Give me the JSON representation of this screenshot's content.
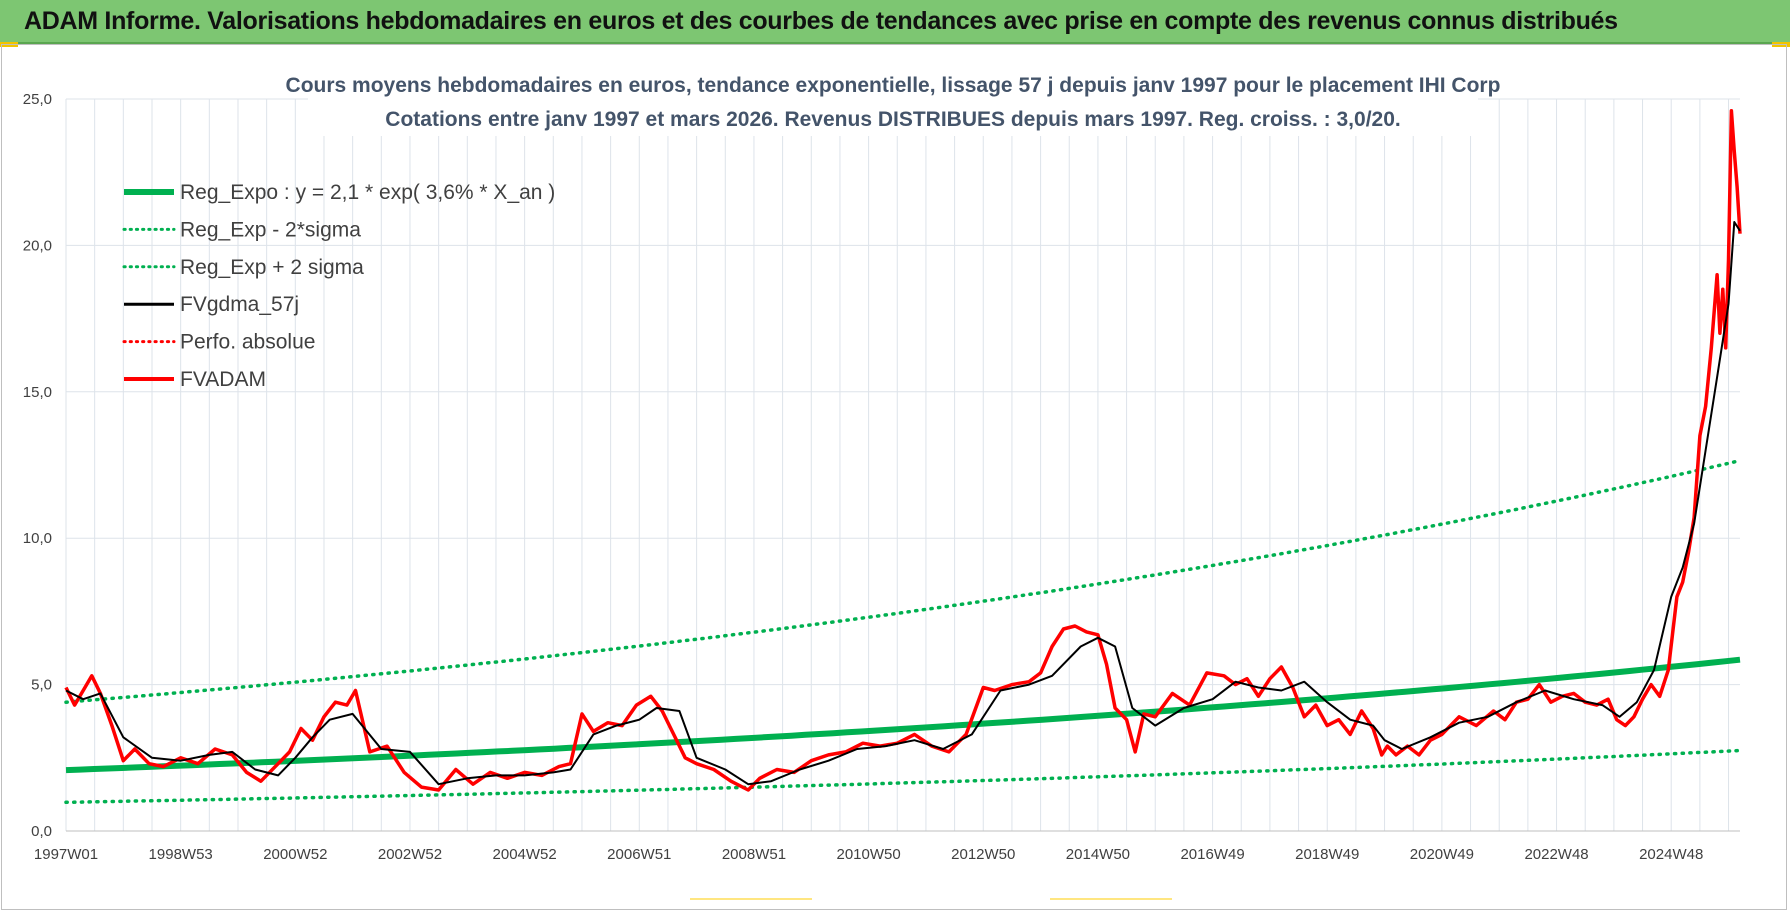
{
  "header": {
    "title": "ADAM Informe. Valorisations hebdomadaires en euros et des courbes de tendances avec prise en compte des revenus connus distribués"
  },
  "colors": {
    "banner": "#7dc672",
    "reg": "#00b050",
    "fv": "#000000",
    "adam": "#ff0000",
    "perfo": "#ff0000"
  },
  "chart_data": {
    "type": "line",
    "title": "Cours moyens hebdomadaires en euros, tendance exponentielle, lissage 57 j depuis janv 1997 pour le placement IHI Corp",
    "subtitle": "Cotations entre janv 1997 et mars 2026. Revenus DISTRIBUES depuis mars 1997. Reg. croiss. : 3,0/20.",
    "xlim": [
      1997.0,
      2026.2
    ],
    "ylim": [
      0,
      25
    ],
    "y_ticks": [
      "0,0",
      "5,0",
      "10,0",
      "15,0",
      "20,0",
      "25,0"
    ],
    "y_tick_values": [
      0,
      5,
      10,
      15,
      20,
      25
    ],
    "x_tick_labels": [
      "1997W01",
      "1998W53",
      "2000W52",
      "2002W52",
      "2004W52",
      "2006W51",
      "2008W51",
      "2010W50",
      "2012W50",
      "2014W50",
      "2016W49",
      "2018W49",
      "2020W49",
      "2022W48",
      "2024W48"
    ],
    "x_tick_values": [
      1997.0,
      1999.0,
      2001.0,
      2003.0,
      2005.0,
      2007.0,
      2009.0,
      2011.0,
      2013.0,
      2015.0,
      2017.0,
      2019.0,
      2021.0,
      2023.0,
      2025.0
    ],
    "grid": true,
    "legend_position": "top-left",
    "legend": [
      {
        "label": "Reg_Expo : y = 2,1 * exp( 3,6% *  X_an )",
        "color": "#00b050",
        "style": "solid"
      },
      {
        "label": "Reg_Exp - 2*sigma",
        "color": "#00b050",
        "style": "dotted"
      },
      {
        "label": "Reg_Exp + 2 sigma",
        "color": "#00b050",
        "style": "dotted"
      },
      {
        "label": "FVgdma_57j",
        "color": "#000000",
        "style": "solid"
      },
      {
        "label": "Perfo. absolue",
        "color": "#ff0000",
        "style": "dotted"
      },
      {
        "label": "FVADAM",
        "color": "#ff0000",
        "style": "solid"
      }
    ],
    "series": [
      {
        "name": "Reg_Expo : y = 2,1 * exp( 3,6% *  X_an )",
        "x": [
          1997.0,
          2026.2
        ],
        "values": [
          2.08,
          5.85
        ]
      },
      {
        "name": "Reg_Exp - 2*sigma",
        "x": [
          1997.0,
          2026.2
        ],
        "values": [
          0.98,
          2.75
        ]
      },
      {
        "name": "Reg_Exp + 2 sigma",
        "x": [
          1997.0,
          2026.2
        ],
        "values": [
          4.4,
          12.65
        ]
      },
      {
        "name": "FVgdma_57j",
        "x": [
          1997.0,
          1997.3,
          1997.6,
          1998.0,
          1998.5,
          1999.0,
          1999.5,
          1999.9,
          2000.3,
          2000.7,
          2001.0,
          2001.3,
          2001.6,
          2002.0,
          2002.5,
          2003.0,
          2003.5,
          2004.0,
          2004.5,
          2005.0,
          2005.5,
          2005.8,
          2006.2,
          2006.6,
          2007.0,
          2007.3,
          2007.7,
          2008.0,
          2008.5,
          2008.9,
          2009.3,
          2009.8,
          2010.3,
          2010.8,
          2011.3,
          2011.8,
          2012.3,
          2012.8,
          2013.3,
          2013.8,
          2014.2,
          2014.7,
          2015.0,
          2015.3,
          2015.6,
          2016.0,
          2016.5,
          2017.0,
          2017.4,
          2017.8,
          2018.2,
          2018.6,
          2019.0,
          2019.4,
          2019.8,
          2020.0,
          2020.3,
          2020.8,
          2021.3,
          2021.8,
          2022.3,
          2022.8,
          2023.3,
          2023.8,
          2024.1,
          2024.4,
          2024.7,
          2025.0,
          2025.2,
          2025.4,
          2025.6,
          2025.8,
          2026.0,
          2026.1,
          2026.2
        ],
        "values": [
          4.8,
          4.5,
          4.7,
          3.2,
          2.5,
          2.4,
          2.6,
          2.7,
          2.1,
          1.9,
          2.5,
          3.2,
          3.8,
          4.0,
          2.8,
          2.7,
          1.6,
          1.8,
          1.9,
          1.9,
          2.0,
          2.1,
          3.3,
          3.6,
          3.8,
          4.2,
          4.1,
          2.5,
          2.1,
          1.6,
          1.7,
          2.1,
          2.4,
          2.8,
          2.9,
          3.1,
          2.8,
          3.3,
          4.8,
          5.0,
          5.3,
          6.3,
          6.6,
          6.3,
          4.2,
          3.6,
          4.2,
          4.5,
          5.1,
          4.9,
          4.8,
          5.1,
          4.4,
          3.8,
          3.6,
          3.1,
          2.8,
          3.2,
          3.7,
          3.9,
          4.4,
          4.8,
          4.5,
          4.3,
          3.9,
          4.4,
          5.5,
          8.0,
          9.0,
          10.5,
          13.0,
          15.5,
          18.0,
          20.8,
          20.5
        ]
      },
      {
        "name": "FVADAM",
        "x": [
          1997.0,
          1997.15,
          1997.3,
          1997.45,
          1997.6,
          1997.8,
          1998.0,
          1998.2,
          1998.45,
          1998.7,
          1999.0,
          1999.3,
          1999.6,
          1999.9,
          2000.15,
          2000.4,
          2000.7,
          2000.9,
          2001.1,
          2001.3,
          2001.5,
          2001.7,
          2001.9,
          2002.05,
          2002.3,
          2002.6,
          2002.9,
          2003.2,
          2003.5,
          2003.8,
          2004.1,
          2004.4,
          2004.7,
          2005.0,
          2005.3,
          2005.6,
          2005.8,
          2006.0,
          2006.2,
          2006.45,
          2006.7,
          2006.95,
          2007.2,
          2007.4,
          2007.6,
          2007.8,
          2008.0,
          2008.3,
          2008.6,
          2008.9,
          2009.1,
          2009.4,
          2009.7,
          2010.0,
          2010.3,
          2010.6,
          2010.9,
          2011.2,
          2011.5,
          2011.8,
          2012.1,
          2012.4,
          2012.7,
          2013.0,
          2013.2,
          2013.5,
          2013.8,
          2014.0,
          2014.2,
          2014.4,
          2014.6,
          2014.8,
          2015.0,
          2015.15,
          2015.3,
          2015.5,
          2015.65,
          2015.8,
          2016.0,
          2016.3,
          2016.6,
          2016.9,
          2017.2,
          2017.4,
          2017.6,
          2017.8,
          2018.0,
          2018.2,
          2018.4,
          2018.6,
          2018.8,
          2019.0,
          2019.2,
          2019.4,
          2019.6,
          2019.8,
          2019.95,
          2020.05,
          2020.2,
          2020.4,
          2020.6,
          2020.8,
          2021.0,
          2021.3,
          2021.6,
          2021.9,
          2022.1,
          2022.3,
          2022.5,
          2022.7,
          2022.9,
          2023.1,
          2023.3,
          2023.5,
          2023.7,
          2023.9,
          2024.05,
          2024.2,
          2024.35,
          2024.5,
          2024.65,
          2024.8,
          2024.95,
          2025.1,
          2025.2,
          2025.3,
          2025.4,
          2025.5,
          2025.6,
          2025.7,
          2025.8,
          2025.85,
          2025.9,
          2025.95,
          2026.0,
          2026.05,
          2026.1,
          2026.15,
          2026.2
        ],
        "values": [
          4.9,
          4.3,
          4.8,
          5.3,
          4.7,
          3.6,
          2.4,
          2.8,
          2.3,
          2.2,
          2.5,
          2.3,
          2.8,
          2.6,
          2.0,
          1.7,
          2.3,
          2.7,
          3.5,
          3.1,
          3.9,
          4.4,
          4.3,
          4.8,
          2.7,
          2.9,
          2.0,
          1.5,
          1.4,
          2.1,
          1.6,
          2.0,
          1.8,
          2.0,
          1.9,
          2.2,
          2.3,
          4.0,
          3.4,
          3.7,
          3.6,
          4.3,
          4.6,
          4.1,
          3.3,
          2.5,
          2.3,
          2.1,
          1.7,
          1.4,
          1.8,
          2.1,
          2.0,
          2.4,
          2.6,
          2.7,
          3.0,
          2.9,
          3.0,
          3.3,
          2.9,
          2.7,
          3.3,
          4.9,
          4.8,
          5.0,
          5.1,
          5.4,
          6.3,
          6.9,
          7.0,
          6.8,
          6.7,
          5.7,
          4.2,
          3.8,
          2.7,
          4.0,
          3.9,
          4.7,
          4.3,
          5.4,
          5.3,
          5.0,
          5.2,
          4.6,
          5.2,
          5.6,
          4.9,
          3.9,
          4.3,
          3.6,
          3.8,
          3.3,
          4.1,
          3.5,
          2.6,
          2.9,
          2.6,
          2.9,
          2.6,
          3.1,
          3.3,
          3.9,
          3.6,
          4.1,
          3.8,
          4.4,
          4.5,
          5.0,
          4.4,
          4.6,
          4.7,
          4.4,
          4.3,
          4.5,
          3.8,
          3.6,
          3.9,
          4.5,
          5.0,
          4.6,
          5.5,
          8.0,
          8.5,
          9.5,
          10.7,
          13.5,
          14.5,
          16.5,
          19.0,
          17.0,
          18.5,
          16.5,
          19.5,
          24.6,
          23.2,
          22.0,
          20.4
        ]
      }
    ]
  }
}
